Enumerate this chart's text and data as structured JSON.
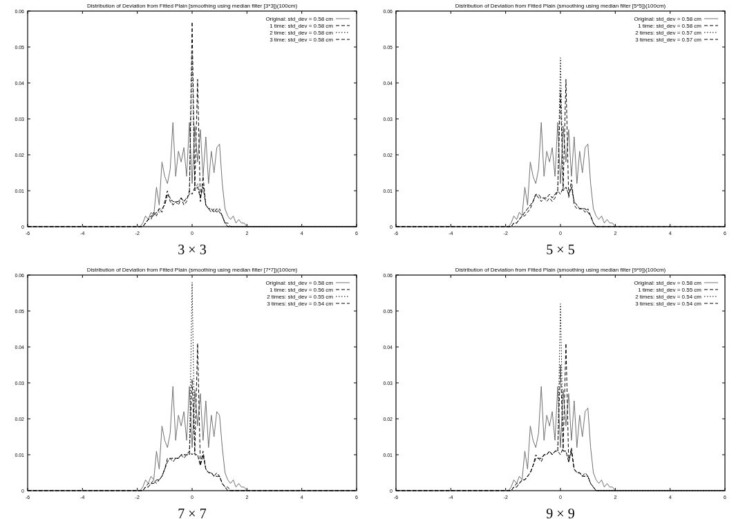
{
  "chart_data": [
    {
      "type": "line",
      "title": "Distribution of Deviation from Fitted Plain [smoothing using median filter [3*3])(100cm)",
      "xlabel": "3 × 3",
      "xlim": [
        -6,
        6
      ],
      "xticks": [
        -6,
        -4,
        -2,
        0,
        2,
        4,
        6
      ],
      "ylim": [
        0,
        0.06
      ],
      "yticks": [
        0,
        0.01,
        0.02,
        0.03,
        0.04,
        0.05,
        0.06
      ],
      "legend": "top right",
      "x": [
        -6,
        -2,
        -1.9,
        -1.8,
        -1.7,
        -1.6,
        -1.5,
        -1.4,
        -1.3,
        -1.2,
        -1.1,
        -1.0,
        -0.9,
        -0.8,
        -0.7,
        -0.6,
        -0.5,
        -0.4,
        -0.3,
        -0.2,
        -0.1,
        0,
        0.1,
        0.2,
        0.3,
        0.4,
        0.5,
        0.6,
        0.7,
        0.8,
        0.9,
        1.0,
        1.1,
        1.2,
        1.3,
        1.4,
        1.5,
        1.6,
        1.7,
        1.8,
        1.9,
        2.0,
        6
      ],
      "series": [
        {
          "name": "Original: std_dev = 0.58 cm",
          "color": "#707070",
          "line_style": "solid",
          "values": [
            0,
            0,
            0,
            0.001,
            0.003,
            0.002,
            0.004,
            0.003,
            0.011,
            0.006,
            0.018,
            0.014,
            0.012,
            0.016,
            0.029,
            0.014,
            0.021,
            0.018,
            0.022,
            0.014,
            0.029,
            0.012,
            0.028,
            0.018,
            0.027,
            0.014,
            0.025,
            0.012,
            0.021,
            0.015,
            0.022,
            0.023,
            0.012,
            0.005,
            0.003,
            0.002,
            0.003,
            0.001,
            0.002,
            0.001,
            0.001,
            0,
            0
          ]
        },
        {
          "name": "1 time: std_dev = 0.58 cm",
          "color": "#000000",
          "line_style": "dashed",
          "values": [
            0,
            0,
            0,
            0,
            0.001,
            0.002,
            0.002,
            0.004,
            0.003,
            0.005,
            0.004,
            0.007,
            0.01,
            0.007,
            0.006,
            0.007,
            0.006,
            0.008,
            0.006,
            0.007,
            0.01,
            0.009,
            0.011,
            0.041,
            0.007,
            0.014,
            0.006,
            0.005,
            0.004,
            0.005,
            0.004,
            0.005,
            0.003,
            0.001,
            0.001,
            0,
            0,
            0,
            0,
            0,
            0,
            0,
            0
          ]
        },
        {
          "name": "2 time: std_dev = 0.58 cm",
          "color": "#000000",
          "line_style": "dotted",
          "values": [
            0,
            0,
            0,
            0,
            0.001,
            0.002,
            0.003,
            0.003,
            0.004,
            0.004,
            0.005,
            0.006,
            0.009,
            0.008,
            0.006,
            0.007,
            0.007,
            0.008,
            0.007,
            0.008,
            0.009,
            0.048,
            0.01,
            0.012,
            0.008,
            0.012,
            0.006,
            0.005,
            0.005,
            0.004,
            0.005,
            0.004,
            0.003,
            0.001,
            0,
            0,
            0,
            0,
            0,
            0,
            0,
            0,
            0
          ]
        },
        {
          "name": "3 time: std_dev = 0.58 cm",
          "color": "#000000",
          "line_style": "dashed",
          "values": [
            0,
            0,
            0,
            0,
            0.001,
            0.002,
            0.003,
            0.003,
            0.004,
            0.005,
            0.005,
            0.006,
            0.009,
            0.008,
            0.007,
            0.007,
            0.007,
            0.008,
            0.007,
            0.008,
            0.009,
            0.057,
            0.01,
            0.011,
            0.008,
            0.011,
            0.006,
            0.005,
            0.005,
            0.004,
            0.005,
            0.004,
            0.003,
            0.001,
            0,
            0,
            0,
            0,
            0,
            0,
            0,
            0,
            0
          ]
        }
      ]
    },
    {
      "type": "line",
      "title": "Distribution of Deviation from Fitted Plain (smoothing using median filter [5*5])(100cm)",
      "xlabel": "5 × 5",
      "xlim": [
        -6,
        6
      ],
      "xticks": [
        -6,
        -4,
        -2,
        0,
        2,
        4,
        6
      ],
      "ylim": [
        0,
        0.06
      ],
      "yticks": [
        0,
        0.01,
        0.02,
        0.03,
        0.04,
        0.05,
        0.06
      ],
      "legend": "top right",
      "x": [
        -6,
        -2,
        -1.9,
        -1.8,
        -1.7,
        -1.6,
        -1.5,
        -1.4,
        -1.3,
        -1.2,
        -1.1,
        -1.0,
        -0.9,
        -0.8,
        -0.7,
        -0.6,
        -0.5,
        -0.4,
        -0.3,
        -0.2,
        -0.1,
        0,
        0.1,
        0.2,
        0.3,
        0.4,
        0.5,
        0.6,
        0.7,
        0.8,
        0.9,
        1.0,
        1.1,
        1.2,
        1.3,
        1.4,
        1.5,
        1.6,
        1.7,
        1.8,
        1.9,
        2.0,
        6
      ],
      "series": [
        {
          "name": "Original: std_dev = 0.58 cm",
          "color": "#707070",
          "line_style": "solid",
          "values": [
            0,
            0,
            0,
            0.001,
            0.003,
            0.002,
            0.004,
            0.003,
            0.011,
            0.006,
            0.018,
            0.014,
            0.012,
            0.016,
            0.029,
            0.014,
            0.021,
            0.018,
            0.022,
            0.014,
            0.029,
            0.012,
            0.028,
            0.018,
            0.027,
            0.014,
            0.025,
            0.012,
            0.021,
            0.015,
            0.022,
            0.023,
            0.012,
            0.005,
            0.003,
            0.002,
            0.003,
            0.001,
            0.002,
            0.001,
            0.001,
            0,
            0
          ]
        },
        {
          "name": "1 time: std_dev = 0.58 cm",
          "color": "#000000",
          "line_style": "dashed",
          "values": [
            0,
            0,
            0,
            0,
            0.001,
            0.001,
            0.002,
            0.003,
            0.003,
            0.004,
            0.005,
            0.007,
            0.009,
            0.008,
            0.007,
            0.008,
            0.007,
            0.008,
            0.007,
            0.008,
            0.01,
            0.009,
            0.011,
            0.041,
            0.008,
            0.013,
            0.006,
            0.005,
            0.005,
            0.005,
            0.004,
            0.005,
            0.003,
            0.001,
            0,
            0,
            0,
            0,
            0,
            0,
            0,
            0,
            0
          ]
        },
        {
          "name": "2 times: std_dev = 0.57 cm",
          "color": "#000000",
          "line_style": "dotted",
          "values": [
            0,
            0,
            0,
            0,
            0.001,
            0.001,
            0.002,
            0.003,
            0.004,
            0.005,
            0.006,
            0.007,
            0.009,
            0.008,
            0.008,
            0.008,
            0.008,
            0.009,
            0.008,
            0.009,
            0.01,
            0.047,
            0.01,
            0.011,
            0.009,
            0.011,
            0.007,
            0.006,
            0.005,
            0.005,
            0.005,
            0.004,
            0.003,
            0.001,
            0,
            0,
            0,
            0,
            0,
            0,
            0,
            0,
            0
          ]
        },
        {
          "name": "3 times: std_dev = 0.57 cm",
          "color": "#000000",
          "line_style": "dashed",
          "values": [
            0,
            0,
            0,
            0,
            0.001,
            0.001,
            0.002,
            0.003,
            0.004,
            0.005,
            0.006,
            0.007,
            0.009,
            0.009,
            0.008,
            0.008,
            0.008,
            0.009,
            0.008,
            0.009,
            0.01,
            0.038,
            0.01,
            0.011,
            0.009,
            0.011,
            0.007,
            0.006,
            0.005,
            0.005,
            0.005,
            0.004,
            0.003,
            0.001,
            0,
            0,
            0,
            0,
            0,
            0,
            0,
            0,
            0
          ]
        }
      ]
    },
    {
      "type": "line",
      "title": "Distribution of Deviation from Fitted Plain (smoothing using median filter [7*7])(100cm)",
      "xlabel": "7 × 7",
      "xlim": [
        -6,
        6
      ],
      "xticks": [
        -6,
        -4,
        -2,
        0,
        2,
        4,
        6
      ],
      "ylim": [
        0,
        0.06
      ],
      "yticks": [
        0,
        0.01,
        0.02,
        0.03,
        0.04,
        0.05,
        0.06
      ],
      "legend": "top right",
      "x": [
        -6,
        -2,
        -1.9,
        -1.8,
        -1.7,
        -1.6,
        -1.5,
        -1.4,
        -1.3,
        -1.2,
        -1.1,
        -1.0,
        -0.9,
        -0.8,
        -0.7,
        -0.6,
        -0.5,
        -0.4,
        -0.3,
        -0.2,
        -0.1,
        0,
        0.1,
        0.2,
        0.3,
        0.4,
        0.5,
        0.6,
        0.7,
        0.8,
        0.9,
        1.0,
        1.1,
        1.2,
        1.3,
        1.4,
        1.5,
        1.6,
        1.7,
        1.8,
        1.9,
        2.0,
        6
      ],
      "series": [
        {
          "name": "Original: std_dev = 0.58 cm",
          "color": "#707070",
          "line_style": "solid",
          "values": [
            0,
            0,
            0,
            0.001,
            0.003,
            0.002,
            0.004,
            0.003,
            0.011,
            0.006,
            0.018,
            0.014,
            0.012,
            0.016,
            0.029,
            0.014,
            0.021,
            0.018,
            0.022,
            0.014,
            0.029,
            0.012,
            0.028,
            0.018,
            0.027,
            0.014,
            0.025,
            0.012,
            0.021,
            0.015,
            0.022,
            0.021,
            0.012,
            0.005,
            0.003,
            0.002,
            0.003,
            0.001,
            0.002,
            0.001,
            0.001,
            0,
            0
          ]
        },
        {
          "name": "1 time: std_dev = 0.56 cm",
          "color": "#000000",
          "line_style": "dashed",
          "values": [
            0,
            0,
            0,
            0,
            0.001,
            0.002,
            0.002,
            0.003,
            0.002,
            0.003,
            0.004,
            0.006,
            0.009,
            0.009,
            0.008,
            0.009,
            0.009,
            0.01,
            0.009,
            0.01,
            0.011,
            0.01,
            0.011,
            0.041,
            0.007,
            0.011,
            0.006,
            0.005,
            0.005,
            0.004,
            0.005,
            0.004,
            0.002,
            0.001,
            0.001,
            0,
            0,
            0,
            0,
            0,
            0,
            0,
            0
          ]
        },
        {
          "name": "2 times: std_dev = 0.55 cm",
          "color": "#000000",
          "line_style": "dotted",
          "values": [
            0,
            0,
            0,
            0,
            0.001,
            0.001,
            0.002,
            0.002,
            0.003,
            0.003,
            0.004,
            0.006,
            0.008,
            0.009,
            0.009,
            0.009,
            0.009,
            0.01,
            0.01,
            0.01,
            0.01,
            0.058,
            0.01,
            0.01,
            0.007,
            0.01,
            0.006,
            0.005,
            0.005,
            0.004,
            0.004,
            0.004,
            0.002,
            0.001,
            0,
            0,
            0,
            0,
            0,
            0,
            0,
            0,
            0
          ]
        },
        {
          "name": "3 times: std_dev = 0.54 cm",
          "color": "#000000",
          "line_style": "dashed",
          "values": [
            0,
            0,
            0,
            0,
            0.001,
            0.001,
            0.002,
            0.002,
            0.003,
            0.003,
            0.004,
            0.006,
            0.008,
            0.009,
            0.009,
            0.009,
            0.009,
            0.01,
            0.01,
            0.01,
            0.01,
            0.031,
            0.01,
            0.01,
            0.007,
            0.01,
            0.006,
            0.005,
            0.005,
            0.004,
            0.004,
            0.004,
            0.002,
            0.001,
            0,
            0,
            0,
            0,
            0,
            0,
            0,
            0,
            0
          ]
        }
      ]
    },
    {
      "type": "line",
      "title": "Distribution of Deviation from Fitted Plain (smoothing using median filter [9*9])(100cm)",
      "xlabel": "9 × 9",
      "xlim": [
        -6,
        6
      ],
      "xticks": [
        -6,
        -4,
        -2,
        0,
        2,
        4,
        6
      ],
      "ylim": [
        0,
        0.06
      ],
      "yticks": [
        0,
        0.01,
        0.02,
        0.03,
        0.04,
        0.05,
        0.06
      ],
      "legend": "top right",
      "x": [
        -6,
        -2,
        -1.9,
        -1.8,
        -1.7,
        -1.6,
        -1.5,
        -1.4,
        -1.3,
        -1.2,
        -1.1,
        -1.0,
        -0.9,
        -0.8,
        -0.7,
        -0.6,
        -0.5,
        -0.4,
        -0.3,
        -0.2,
        -0.1,
        0,
        0.1,
        0.2,
        0.3,
        0.4,
        0.5,
        0.6,
        0.7,
        0.8,
        0.9,
        1.0,
        1.1,
        1.2,
        1.3,
        1.4,
        1.5,
        1.6,
        1.7,
        1.8,
        1.9,
        2.0,
        6
      ],
      "series": [
        {
          "name": "Original: std_dev = 0.58 cm",
          "color": "#707070",
          "line_style": "solid",
          "values": [
            0,
            0,
            0,
            0.001,
            0.003,
            0.002,
            0.004,
            0.003,
            0.011,
            0.006,
            0.018,
            0.014,
            0.012,
            0.016,
            0.029,
            0.014,
            0.021,
            0.018,
            0.022,
            0.014,
            0.029,
            0.012,
            0.028,
            0.018,
            0.027,
            0.014,
            0.025,
            0.012,
            0.021,
            0.015,
            0.022,
            0.023,
            0.012,
            0.005,
            0.003,
            0.002,
            0.003,
            0.001,
            0.002,
            0.001,
            0.001,
            0,
            0
          ]
        },
        {
          "name": "1 time: std_dev = 0.55 cm",
          "color": "#000000",
          "line_style": "dashed",
          "values": [
            0,
            0,
            0,
            0,
            0.001,
            0.002,
            0.002,
            0.003,
            0.003,
            0.004,
            0.005,
            0.007,
            0.01,
            0.009,
            0.008,
            0.01,
            0.01,
            0.011,
            0.01,
            0.011,
            0.011,
            0.01,
            0.012,
            0.041,
            0.008,
            0.012,
            0.006,
            0.005,
            0.005,
            0.004,
            0.005,
            0.004,
            0.002,
            0.001,
            0,
            0,
            0,
            0,
            0,
            0,
            0,
            0,
            0
          ]
        },
        {
          "name": "2 times: std_dev = 0.54 cm",
          "color": "#000000",
          "line_style": "dotted",
          "values": [
            0,
            0,
            0,
            0,
            0.001,
            0.001,
            0.002,
            0.003,
            0.003,
            0.004,
            0.005,
            0.007,
            0.009,
            0.009,
            0.009,
            0.01,
            0.01,
            0.011,
            0.01,
            0.011,
            0.011,
            0.052,
            0.011,
            0.011,
            0.008,
            0.011,
            0.006,
            0.005,
            0.005,
            0.004,
            0.004,
            0.004,
            0.002,
            0.001,
            0,
            0,
            0,
            0,
            0,
            0,
            0,
            0,
            0
          ]
        },
        {
          "name": "3 times: std_dev = 0.54 cm",
          "color": "#000000",
          "line_style": "dashed",
          "values": [
            0,
            0,
            0,
            0,
            0.001,
            0.001,
            0.002,
            0.003,
            0.003,
            0.004,
            0.005,
            0.007,
            0.009,
            0.009,
            0.009,
            0.01,
            0.01,
            0.011,
            0.01,
            0.011,
            0.011,
            0.035,
            0.011,
            0.011,
            0.008,
            0.011,
            0.006,
            0.005,
            0.005,
            0.004,
            0.004,
            0.004,
            0.002,
            0.001,
            0,
            0,
            0,
            0,
            0,
            0,
            0,
            0,
            0
          ]
        }
      ]
    }
  ]
}
